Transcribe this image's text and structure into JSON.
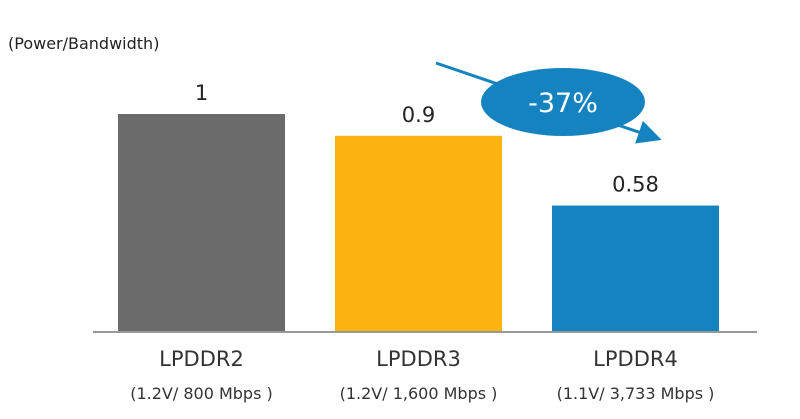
{
  "chart_data": {
    "type": "bar",
    "title": "",
    "ylabel": "(Power/Bandwidth)",
    "xlabel": "",
    "ylim": [
      0,
      1
    ],
    "grid": false,
    "categories": [
      "LPDDR2",
      "LPDDR3",
      "LPDDR4"
    ],
    "sublabels": [
      "(1.2V/ 800 Mbps )",
      "(1.2V/ 1,600 Mbps )",
      "(1.1V/ 3,733 Mbps )"
    ],
    "values": [
      1,
      0.9,
      0.58
    ],
    "value_labels": [
      "1",
      "0.9",
      "0.58"
    ],
    "colors": [
      "#6b6b6b",
      "#fbb40f",
      "#1583c0"
    ],
    "annotation": {
      "text": "-37%",
      "color": "#1583c0"
    }
  }
}
